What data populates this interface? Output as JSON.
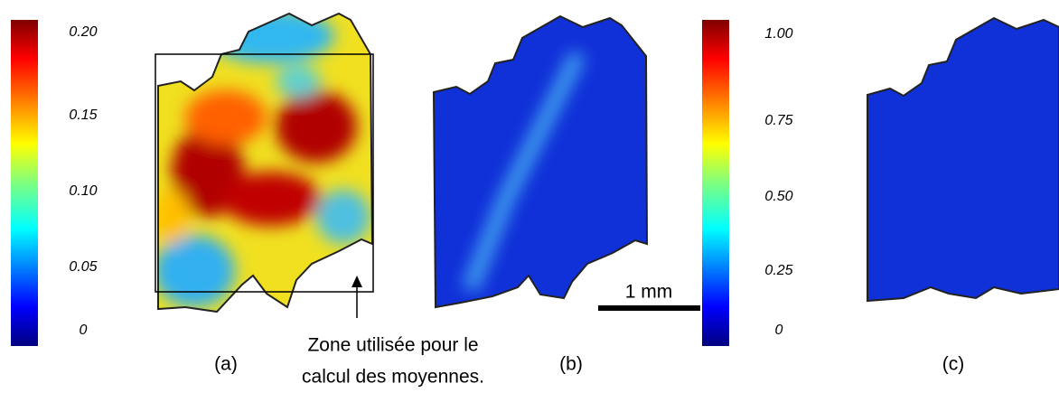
{
  "figure": {
    "colorbars": [
      {
        "ticks": [
          "0.20",
          "0.15",
          "0.10",
          "0.05",
          "0"
        ]
      },
      {
        "ticks": [
          "1.00",
          "0.75",
          "0.50",
          "0.25",
          "0"
        ]
      }
    ],
    "panels": [
      {
        "label": "(a)"
      },
      {
        "label": "(b)"
      },
      {
        "label": "(c)"
      }
    ],
    "scale_bar": "1 mm",
    "annotation": [
      "Zone utilisée pour le",
      "calcul des moyennes."
    ]
  }
}
